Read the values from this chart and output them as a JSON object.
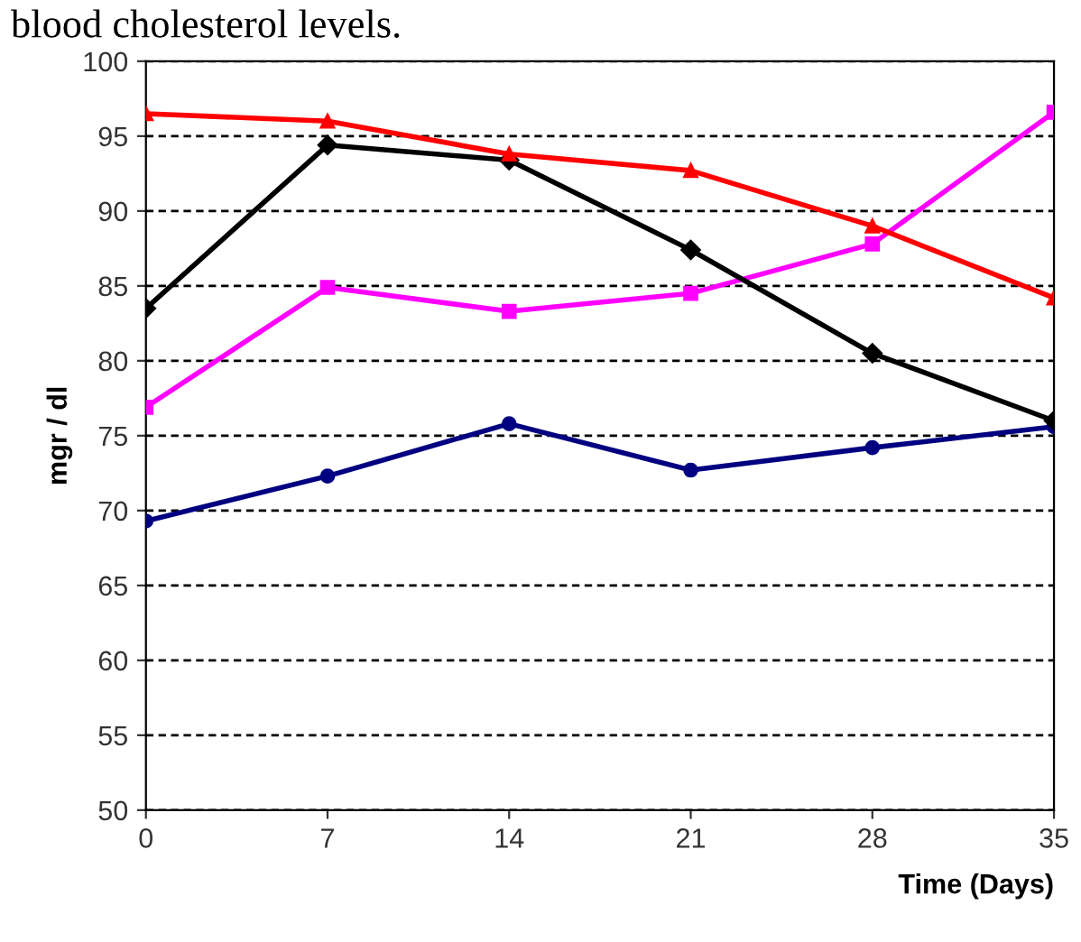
{
  "chart_data": {
    "type": "line",
    "title": "blood cholesterol levels.",
    "xlabel": "Time (Days)",
    "ylabel": "mgr / dl",
    "x": [
      0,
      7,
      14,
      21,
      28,
      35
    ],
    "series": [
      {
        "color": "#ff0000",
        "marker": "triangle",
        "values": [
          96.5,
          96.0,
          93.8,
          92.7,
          89.0,
          84.2
        ]
      },
      {
        "color": "#000000",
        "marker": "diamond",
        "values": [
          83.5,
          94.4,
          93.4,
          87.4,
          80.5,
          76.0
        ]
      },
      {
        "color": "#ff00ff",
        "marker": "square",
        "values": [
          76.9,
          84.9,
          83.3,
          84.5,
          87.8,
          96.6
        ]
      },
      {
        "color": "#000080",
        "marker": "circle",
        "values": [
          69.3,
          72.3,
          75.8,
          72.7,
          74.2,
          75.6
        ]
      }
    ],
    "xlim": [
      0,
      35
    ],
    "xticks": [
      0,
      7,
      14,
      21,
      28,
      35
    ],
    "ylim": [
      50,
      100
    ],
    "yticks": [
      50,
      55,
      60,
      65,
      70,
      75,
      80,
      85,
      90,
      95,
      100
    ],
    "grid": "y",
    "line_style": "solid"
  }
}
